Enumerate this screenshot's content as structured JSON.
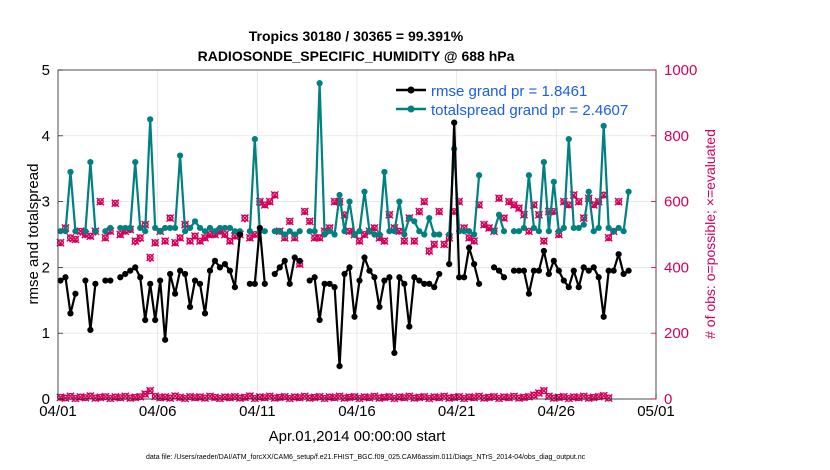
{
  "chart_data": {
    "type": "line",
    "title": "Tropics 30180 / 30365 = 99.391%",
    "subtitle": "RADIOSONDE_SPECIFIC_HUMIDITY @ 688 hPa",
    "xlabel": "Apr.01,2014 00:00:00 start",
    "ylabel": "rmse and totalspread",
    "y2label": "# of obs: o=possible; ×=evaluated",
    "footer": "data file: /Users/raeder/DAI/ATM_forcXX/CAM6_setup/f.e21.FHIST_BGC.f09_025.CAM6assim.011/Diags_NTrS_2014-04/obs_diag_output.nc",
    "xlim": [
      0,
      30
    ],
    "ylim": [
      0,
      5
    ],
    "y2lim": [
      0,
      1000
    ],
    "x_tick_labels": [
      "04/01",
      "04/06",
      "04/11",
      "04/16",
      "04/21",
      "04/26",
      "05/01"
    ],
    "x_tick_values": [
      0,
      5,
      10,
      15,
      20,
      25,
      30
    ],
    "y_ticks": [
      0,
      1,
      2,
      3,
      4,
      5
    ],
    "y2_ticks": [
      0,
      200,
      400,
      600,
      800,
      1000
    ],
    "legend_position": "top-right",
    "x_step": 0.25,
    "x_start": 0.125,
    "colors": {
      "rmse": "#000000",
      "spread": "#008080",
      "obs": "#d6005c"
    },
    "series": [
      {
        "name": "rmse",
        "legend": "rmse grand pr = 1.8461",
        "axis": "left",
        "values": [
          1.8,
          1.85,
          1.3,
          1.6,
          null,
          1.8,
          1.05,
          1.75,
          null,
          1.8,
          1.8,
          null,
          1.85,
          1.9,
          1.95,
          2.0,
          1.85,
          1.2,
          1.75,
          1.2,
          1.8,
          0.9,
          1.9,
          1.6,
          1.95,
          1.9,
          1.4,
          1.8,
          1.75,
          1.3,
          1.95,
          2.1,
          2.0,
          2.05,
          1.95,
          1.7,
          2.5,
          null,
          1.75,
          1.75,
          2.6,
          1.75,
          null,
          1.9,
          2.0,
          2.1,
          1.75,
          2.15,
          2.1,
          null,
          1.8,
          1.85,
          1.2,
          1.75,
          1.75,
          1.7,
          0.5,
          1.9,
          2.0,
          1.25,
          1.8,
          2.15,
          1.95,
          1.85,
          1.4,
          1.8,
          1.85,
          0.7,
          1.85,
          1.75,
          1.1,
          1.85,
          1.8,
          1.75,
          1.75,
          1.7,
          1.9,
          null,
          2.05,
          4.2,
          1.85,
          1.85,
          2.3,
          2.05,
          1.75,
          null,
          null,
          2.0,
          1.95,
          1.85,
          null,
          1.95,
          1.95,
          1.95,
          1.6,
          1.95,
          1.95,
          2.25,
          1.9,
          2.1,
          1.95,
          1.8,
          1.7,
          1.95,
          1.7,
          2.0,
          1.95,
          2.0,
          1.85,
          1.25,
          1.95,
          1.95,
          2.2,
          1.9,
          1.95
        ]
      },
      {
        "name": "totalspread",
        "legend": "totalspread grand pr = 2.4607",
        "axis": "left",
        "values": [
          2.55,
          2.55,
          3.45,
          2.55,
          null,
          2.55,
          3.6,
          2.55,
          null,
          2.55,
          2.6,
          null,
          2.6,
          2.6,
          2.6,
          3.6,
          2.6,
          2.55,
          4.25,
          2.6,
          2.55,
          2.6,
          2.6,
          2.6,
          3.7,
          2.55,
          2.6,
          2.7,
          2.6,
          2.55,
          2.6,
          2.55,
          2.6,
          2.6,
          2.6,
          2.55,
          2.55,
          null,
          2.55,
          3.95,
          2.55,
          2.55,
          null,
          2.55,
          2.55,
          2.5,
          2.55,
          2.5,
          2.55,
          null,
          2.55,
          2.55,
          4.8,
          2.5,
          2.55,
          2.5,
          3.1,
          2.55,
          3.0,
          2.5,
          2.55,
          3.15,
          2.55,
          2.5,
          2.5,
          3.45,
          2.55,
          2.55,
          3.0,
          2.5,
          2.75,
          2.7,
          2.55,
          2.5,
          2.75,
          2.5,
          2.5,
          null,
          2.5,
          3.8,
          2.55,
          2.55,
          2.55,
          2.5,
          3.4,
          null,
          null,
          2.55,
          2.8,
          2.55,
          null,
          2.55,
          2.55,
          2.6,
          3.4,
          2.6,
          2.55,
          3.6,
          2.55,
          3.3,
          2.55,
          2.6,
          3.95,
          2.6,
          2.6,
          2.65,
          3.15,
          2.55,
          2.6,
          4.15,
          2.6,
          2.55,
          2.6,
          2.55,
          3.15
        ]
      },
      {
        "name": "obs_possible",
        "axis": "right",
        "values": [
          475,
          520,
          490,
          485,
          510,
          500,
          495,
          510,
          600,
          490,
          510,
          595,
          500,
          510,
          515,
          480,
          490,
          530,
          430,
          475,
          510,
          480,
          550,
          475,
          490,
          530,
          480,
          495,
          480,
          490,
          500,
          500,
          510,
          500,
          480,
          495,
          500,
          550,
          490,
          500,
          600,
          590,
          600,
          620,
          510,
          490,
          540,
          490,
          410,
          570,
          540,
          490,
          490,
          510,
          520,
          600,
          600,
          560,
          510,
          500,
          480,
          500,
          510,
          520,
          490,
          480,
          560,
          520,
          510,
          480,
          550,
          480,
          570,
          600,
          450,
          470,
          570,
          470,
          490,
          570,
          600,
          520,
          490,
          480,
          590,
          530,
          520,
          510,
          610,
          550,
          600,
          590,
          580,
          560,
          510,
          590,
          560,
          480,
          570,
          570,
          500,
          600,
          590,
          620,
          600,
          550,
          610,
          590,
          600,
          620,
          490,
          510,
          600
        ]
      },
      {
        "name": "obs_evaluated",
        "axis": "right",
        "values": [
          470,
          515,
          480,
          480,
          500,
          495,
          490,
          500,
          595,
          485,
          505,
          590,
          495,
          505,
          510,
          470,
          480,
          525,
          420,
          470,
          505,
          475,
          545,
          470,
          485,
          525,
          475,
          490,
          475,
          485,
          495,
          495,
          505,
          495,
          475,
          490,
          495,
          540,
          485,
          495,
          590,
          585,
          595,
          615,
          505,
          485,
          535,
          485,
          405,
          565,
          535,
          485,
          485,
          505,
          515,
          595,
          590,
          555,
          505,
          495,
          475,
          495,
          505,
          515,
          485,
          475,
          555,
          515,
          505,
          475,
          545,
          475,
          565,
          595,
          440,
          465,
          565,
          465,
          485,
          565,
          595,
          515,
          485,
          475,
          585,
          525,
          515,
          505,
          605,
          545,
          595,
          585,
          575,
          555,
          505,
          585,
          555,
          475,
          565,
          565,
          495,
          595,
          585,
          615,
          595,
          545,
          605,
          585,
          595,
          615,
          485,
          505,
          595
        ]
      },
      {
        "name": "obs_low",
        "axis": "right",
        "values": [
          5,
          3,
          8,
          2,
          6,
          4,
          9,
          3,
          5,
          7,
          2,
          6,
          4,
          8,
          3,
          5,
          7,
          15,
          25,
          8,
          4,
          6,
          3,
          9,
          5,
          2,
          7,
          4,
          6,
          3,
          8,
          5,
          2,
          6,
          4,
          7,
          3,
          5,
          9,
          2,
          6,
          4,
          8,
          3,
          5,
          7,
          2,
          6,
          4,
          8,
          3,
          5,
          7,
          2,
          6,
          4,
          8,
          3,
          5,
          7,
          2,
          6,
          4,
          8,
          3,
          5,
          7,
          2,
          6,
          4,
          8,
          3,
          5,
          7,
          2,
          6,
          4,
          8,
          3,
          5,
          7,
          2,
          6,
          4,
          8,
          3,
          5,
          7,
          2,
          6,
          4,
          8,
          3,
          5,
          7,
          12,
          18,
          25,
          8,
          3,
          5,
          7,
          2,
          6,
          4,
          8,
          3,
          5,
          7,
          10,
          3
        ]
      }
    ]
  }
}
